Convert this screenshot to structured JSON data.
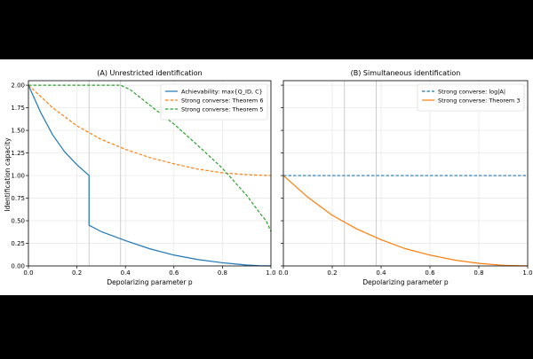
{
  "figure": {
    "background": "#000000",
    "canvas": "#ffffff",
    "shared_ylabel": "Identification capacity"
  },
  "chart_data": [
    {
      "type": "line",
      "title": "(A) Unrestricted identification",
      "xlabel": "Depolarizing parameter p",
      "ylabel": "Identification capacity",
      "xlim": [
        0,
        1
      ],
      "ylim": [
        0,
        2.05
      ],
      "xticks": [
        "0.0",
        "0.2",
        "0.4",
        "0.6",
        "0.8",
        "1.0"
      ],
      "yticks": [
        "0.00",
        "0.25",
        "0.50",
        "0.75",
        "1.00",
        "1.25",
        "1.50",
        "1.75",
        "2.00"
      ],
      "grid": true,
      "reference_vlines": [
        0.25,
        0.38
      ],
      "legend_position": "top-right",
      "series": [
        {
          "name": "Achievability: max{Q_ID, C}",
          "color": "#1f77b4",
          "style": "solid",
          "x": [
            0.0,
            0.05,
            0.1,
            0.15,
            0.2,
            0.25,
            0.25,
            0.3,
            0.4,
            0.5,
            0.6,
            0.7,
            0.8,
            0.9,
            0.95,
            1.0
          ],
          "y": [
            2.0,
            1.7,
            1.45,
            1.26,
            1.12,
            1.0,
            0.45,
            0.38,
            0.28,
            0.19,
            0.12,
            0.07,
            0.035,
            0.01,
            0.003,
            0.0
          ]
        },
        {
          "name": "Strong converse: Theorem 6",
          "color": "#ff7f0e",
          "style": "dashed",
          "x": [
            0.0,
            0.1,
            0.2,
            0.3,
            0.4,
            0.5,
            0.6,
            0.7,
            0.8,
            0.9,
            1.0
          ],
          "y": [
            2.0,
            1.75,
            1.55,
            1.4,
            1.29,
            1.2,
            1.13,
            1.07,
            1.03,
            1.01,
            1.0
          ]
        },
        {
          "name": "Strong converse: Theorem 5",
          "color": "#2ca02c",
          "style": "dashed",
          "x": [
            0.0,
            0.35,
            0.38,
            0.42,
            0.5,
            0.6,
            0.7,
            0.8,
            0.9,
            0.95,
            0.98,
            1.0
          ],
          "y": [
            2.0,
            2.0,
            2.0,
            1.95,
            1.78,
            1.57,
            1.33,
            1.08,
            0.78,
            0.6,
            0.5,
            0.38
          ]
        }
      ]
    },
    {
      "type": "line",
      "title": "(B) Simultaneous identification",
      "xlabel": "Depolarizing parameter p",
      "ylabel": "",
      "xlim": [
        0,
        1
      ],
      "ylim": [
        0,
        2.05
      ],
      "xticks": [
        "0.0",
        "0.2",
        "0.4",
        "0.6",
        "0.8",
        "1.0"
      ],
      "yticks": [],
      "grid": true,
      "reference_vlines": [
        0.25,
        0.38
      ],
      "legend_position": "top-right",
      "series": [
        {
          "name": "Strong converse: log|A|",
          "color": "#1f77b4",
          "style": "dashed",
          "x": [
            0.0,
            1.0
          ],
          "y": [
            1.0,
            1.0
          ]
        },
        {
          "name": "Strong converse: Theorem 3",
          "color": "#ff7f0e",
          "style": "solid",
          "x": [
            0.0,
            0.1,
            0.2,
            0.3,
            0.4,
            0.5,
            0.6,
            0.7,
            0.8,
            0.9,
            1.0
          ],
          "y": [
            1.0,
            0.76,
            0.56,
            0.41,
            0.29,
            0.19,
            0.12,
            0.065,
            0.028,
            0.007,
            0.0
          ]
        }
      ]
    }
  ]
}
